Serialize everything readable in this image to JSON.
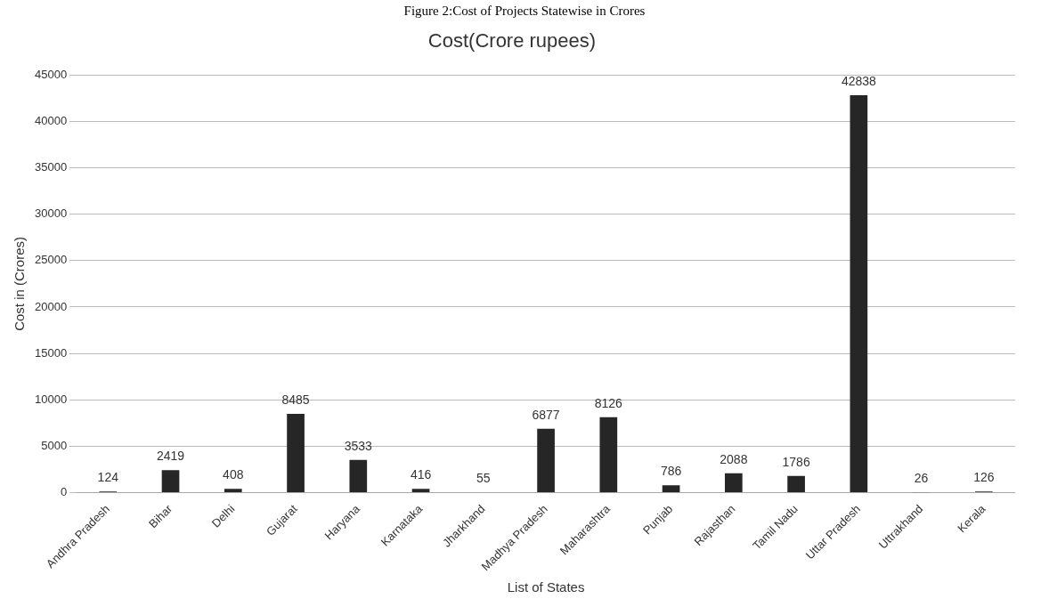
{
  "chart_data": {
    "type": "bar",
    "title": "Figure 2:Cost of Projects Statewise in Crores",
    "subtitle": "Cost(Crore rupees)",
    "xlabel": "List of States",
    "ylabel": "Cost in (Crores)",
    "categories": [
      "Andhra Pradesh",
      "Bihar",
      "Delhi",
      "Gujarat",
      "Haryana",
      "Karnataka",
      "Jharkhand",
      "Madhya Pradesh",
      "Maharashtra",
      "Punjab",
      "Rajasthan",
      "Tamil Nadu",
      "Uttar Pradesh",
      "Uttrakhand",
      "Kerala"
    ],
    "values": [
      124,
      2419,
      408,
      8485,
      3533,
      416,
      55,
      6877,
      8126,
      786,
      2088,
      1786,
      42838,
      26,
      126
    ],
    "color": "#262626",
    "ylim": [
      0,
      45000
    ],
    "yticks": [
      0,
      5000,
      10000,
      15000,
      20000,
      25000,
      30000,
      35000,
      40000,
      45000
    ],
    "grid": "y",
    "data_labels": true,
    "legend": false
  }
}
